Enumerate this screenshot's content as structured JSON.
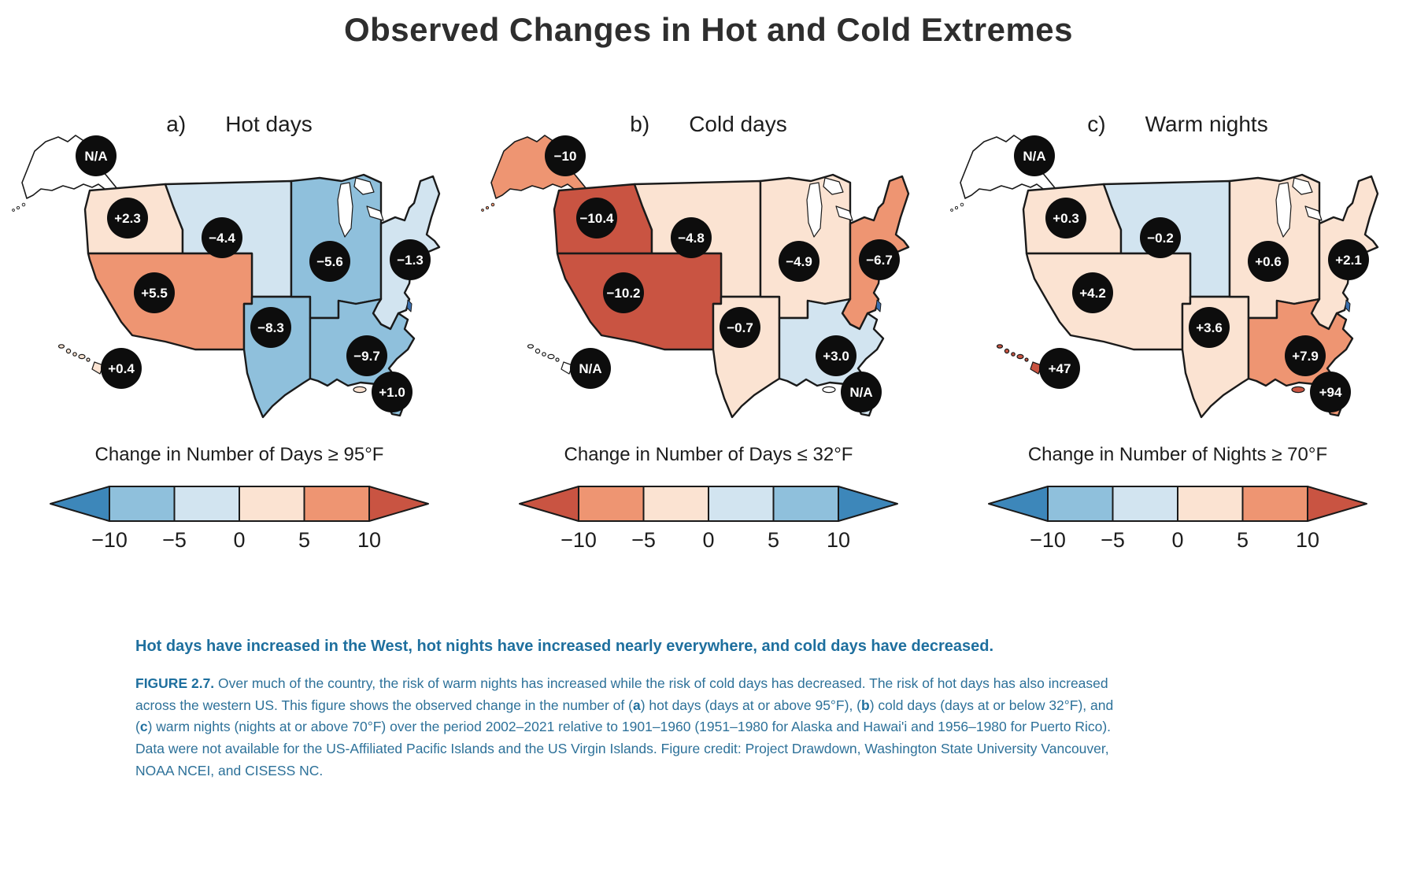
{
  "title": "Observed Changes in Hot and Cold Extremes",
  "palette": {
    "deep_blue": "#3d87ba",
    "mid_blue": "#8fc0dc",
    "light_blue": "#d2e4f0",
    "light_peach": "#fbe3d2",
    "salmon": "#ee9572",
    "deep_red": "#c95442",
    "na_white": "#ffffff",
    "badge_black": "#0d0d0d",
    "badge_text": "#ffffff",
    "water_blue": "#3b6fae",
    "outline": "#1a1a1a"
  },
  "panels": [
    {
      "letter": "a)",
      "label": "Hot days",
      "legend_title": "Change in Number of Days ≥ 95°F",
      "colorbar": {
        "left_arrow": "deep_blue",
        "segments": [
          "mid_blue",
          "light_blue",
          "light_peach",
          "salmon"
        ],
        "right_arrow": "deep_red",
        "ticks": [
          "−10",
          "−5",
          "0",
          "5",
          "10"
        ]
      },
      "regions": {
        "alaska": {
          "value": "N/A",
          "fill": "na_white"
        },
        "northwest": {
          "value": "+2.3",
          "fill": "light_peach"
        },
        "n_great_plains": {
          "value": "−4.4",
          "fill": "light_blue"
        },
        "midwest": {
          "value": "−5.6",
          "fill": "mid_blue"
        },
        "northeast": {
          "value": "−1.3",
          "fill": "light_blue"
        },
        "southwest": {
          "value": "+5.5",
          "fill": "salmon"
        },
        "s_great_plains": {
          "value": "−8.3",
          "fill": "mid_blue"
        },
        "southeast": {
          "value": "−9.7",
          "fill": "mid_blue"
        },
        "hawaii": {
          "value": "+0.4",
          "fill": "light_peach"
        },
        "puerto_rico": {
          "value": "+1.0",
          "fill": "light_peach"
        }
      }
    },
    {
      "letter": "b)",
      "label": "Cold days",
      "legend_title": "Change in Number of Days ≤ 32°F",
      "colorbar": {
        "left_arrow": "deep_red",
        "segments": [
          "salmon",
          "light_peach",
          "light_blue",
          "mid_blue"
        ],
        "right_arrow": "deep_blue",
        "ticks": [
          "−10",
          "−5",
          "0",
          "5",
          "10"
        ]
      },
      "regions": {
        "alaska": {
          "value": "−10",
          "fill": "salmon"
        },
        "northwest": {
          "value": "−10.4",
          "fill": "deep_red"
        },
        "n_great_plains": {
          "value": "−4.8",
          "fill": "light_peach"
        },
        "midwest": {
          "value": "−4.9",
          "fill": "light_peach"
        },
        "northeast": {
          "value": "−6.7",
          "fill": "salmon"
        },
        "southwest": {
          "value": "−10.2",
          "fill": "deep_red"
        },
        "s_great_plains": {
          "value": "−0.7",
          "fill": "light_peach"
        },
        "southeast": {
          "value": "+3.0",
          "fill": "light_blue"
        },
        "hawaii": {
          "value": "N/A",
          "fill": "na_white"
        },
        "puerto_rico": {
          "value": "N/A",
          "fill": "na_white"
        }
      }
    },
    {
      "letter": "c)",
      "label": "Warm nights",
      "legend_title": "Change in Number of Nights ≥ 70°F",
      "colorbar": {
        "left_arrow": "deep_blue",
        "segments": [
          "mid_blue",
          "light_blue",
          "light_peach",
          "salmon"
        ],
        "right_arrow": "deep_red",
        "ticks": [
          "−10",
          "−5",
          "0",
          "5",
          "10"
        ]
      },
      "regions": {
        "alaska": {
          "value": "N/A",
          "fill": "na_white"
        },
        "northwest": {
          "value": "+0.3",
          "fill": "light_peach"
        },
        "n_great_plains": {
          "value": "−0.2",
          "fill": "light_blue"
        },
        "midwest": {
          "value": "+0.6",
          "fill": "light_peach"
        },
        "northeast": {
          "value": "+2.1",
          "fill": "light_peach"
        },
        "southwest": {
          "value": "+4.2",
          "fill": "light_peach"
        },
        "s_great_plains": {
          "value": "+3.6",
          "fill": "light_peach"
        },
        "southeast": {
          "value": "+7.9",
          "fill": "salmon"
        },
        "hawaii": {
          "value": "+47",
          "fill": "deep_red"
        },
        "puerto_rico": {
          "value": "+94",
          "fill": "deep_red"
        }
      }
    }
  ],
  "headline": "Hot days have increased in the West, hot nights have increased nearly everywhere, and cold days have decreased.",
  "caption_segments": [
    {
      "text": "FIGURE 2.7.",
      "bold": true
    },
    {
      "text": " Over much of the country, the risk of warm nights has increased while the risk of cold days has decreased. The risk of hot days has also increased across the western US. This figure shows the observed change in the number of (",
      "bold": false
    },
    {
      "text": "a",
      "bold": true
    },
    {
      "text": ") hot days (days at or above 95°F), (",
      "bold": false
    },
    {
      "text": "b",
      "bold": true
    },
    {
      "text": ") cold days (days at or below 32°F), and (",
      "bold": false
    },
    {
      "text": "c",
      "bold": true
    },
    {
      "text": ") warm nights (nights at or above 70°F) over the period 2002–2021 relative to 1901–1960 (1951–1980 for Alaska and Hawai'i and 1956–1980 for Puerto Rico). Data were not available for the US-Affiliated Pacific Islands and the US Virgin Islands. Figure credit: Project Drawdown, Washington State University Vancouver, NOAA NCEI, and CISESS NC.",
      "bold": false
    }
  ],
  "chart_data": {
    "type": "heatmap",
    "subtype": "choropleth_maps",
    "title": "Observed Changes in Hot and Cold Extremes",
    "scale_ticks": [
      -10,
      -5,
      0,
      5,
      10
    ],
    "legend_position": "below each map",
    "maps": [
      {
        "panel": "a",
        "label": "Hot days",
        "metric": "Change in Number of Days ≥ 95°F",
        "values": {
          "Alaska": "N/A",
          "Northwest": 2.3,
          "Northern Great Plains": -4.4,
          "Midwest": -5.6,
          "Northeast": -1.3,
          "Southwest": 5.5,
          "Southern Great Plains": -8.3,
          "Southeast": -9.7,
          "Hawaii": 0.4,
          "Puerto Rico": 1.0
        }
      },
      {
        "panel": "b",
        "label": "Cold days",
        "metric": "Change in Number of Days ≤ 32°F",
        "values": {
          "Alaska": -10,
          "Northwest": -10.4,
          "Northern Great Plains": -4.8,
          "Midwest": -4.9,
          "Northeast": -6.7,
          "Southwest": -10.2,
          "Southern Great Plains": -0.7,
          "Southeast": 3.0,
          "Hawaii": "N/A",
          "Puerto Rico": "N/A"
        }
      },
      {
        "panel": "c",
        "label": "Warm nights",
        "metric": "Change in Number of Nights ≥ 70°F",
        "values": {
          "Alaska": "N/A",
          "Northwest": 0.3,
          "Northern Great Plains": -0.2,
          "Midwest": 0.6,
          "Northeast": 2.1,
          "Southwest": 4.2,
          "Southern Great Plains": 3.6,
          "Southeast": 7.9,
          "Hawaii": 47,
          "Puerto Rico": 94
        }
      }
    ]
  }
}
